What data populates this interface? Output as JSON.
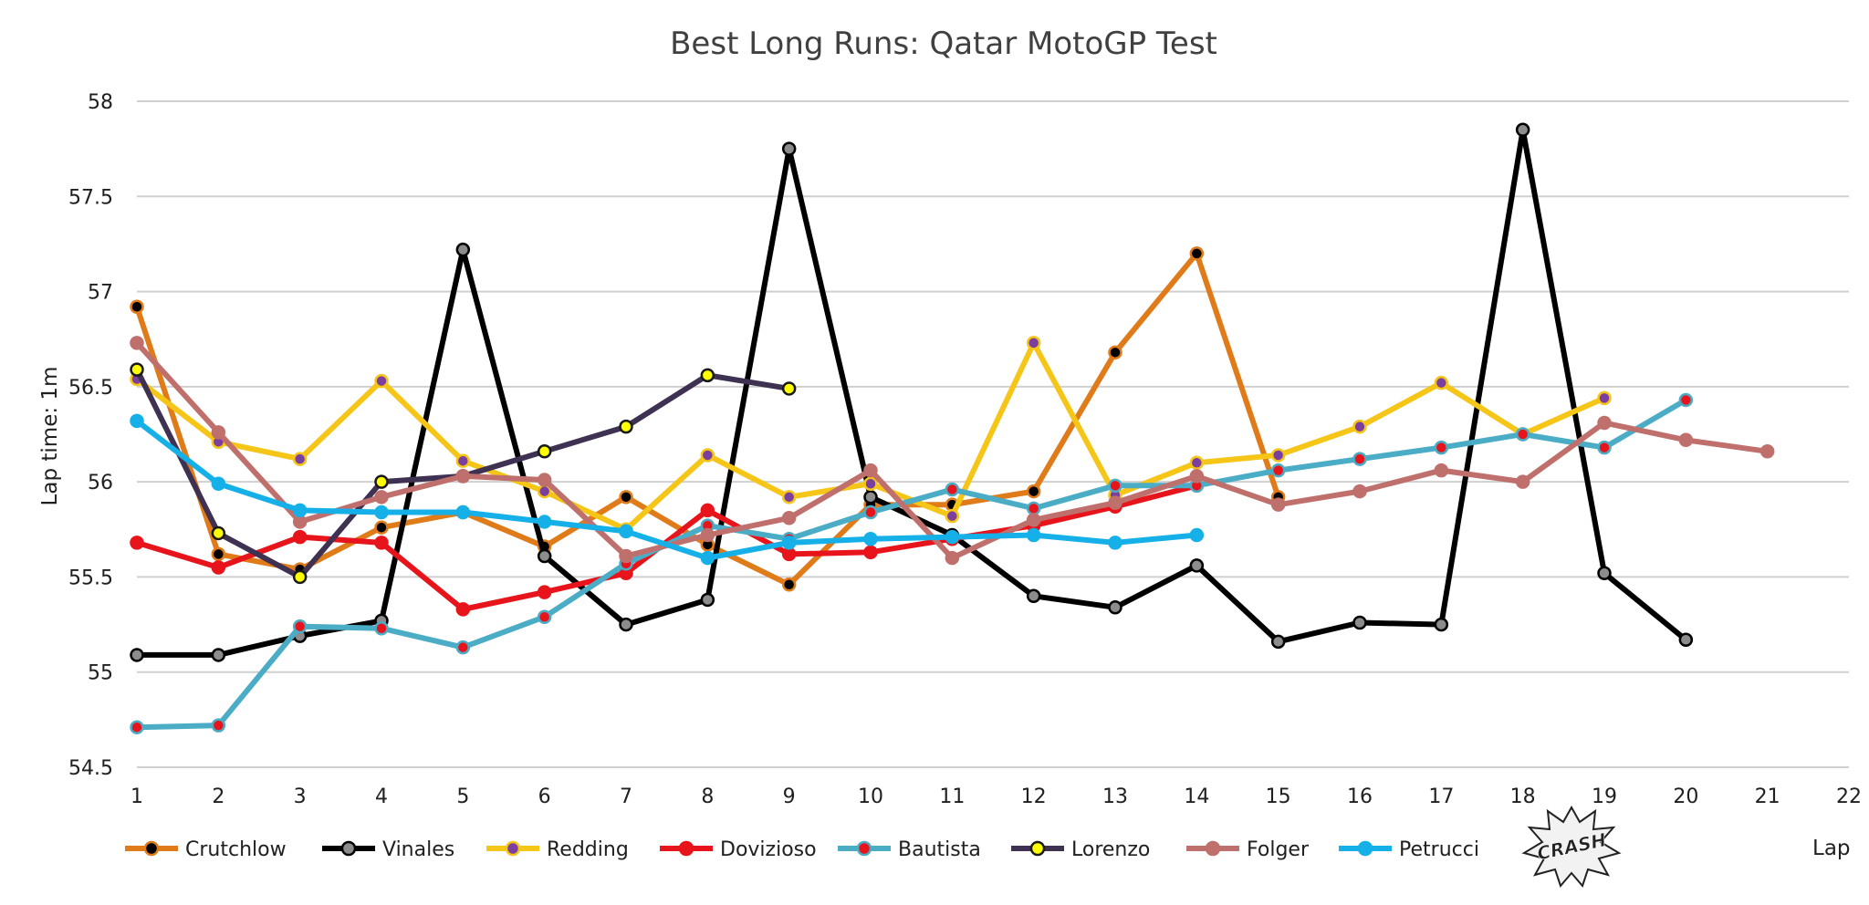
{
  "chart_data": {
    "type": "line",
    "title": "Best Long Runs: Qatar MotoGP Test",
    "xlabel": "Lap",
    "ylabel": "Lap time: 1m",
    "xlim": [
      1,
      22
    ],
    "ylim": [
      54.5,
      58
    ],
    "x_ticks": [
      "1",
      "2",
      "3",
      "4",
      "5",
      "6",
      "7",
      "8",
      "9",
      "10",
      "11",
      "12",
      "13",
      "14",
      "15",
      "16",
      "17",
      "18",
      "19",
      "20",
      "21",
      "22"
    ],
    "y_ticks": [
      "54.5",
      "55",
      "55.5",
      "56",
      "56.5",
      "57",
      "57.5",
      "58"
    ],
    "grid": true,
    "legend_position": "bottom",
    "logo_text": "CRASH",
    "series": [
      {
        "name": "Crutchlow",
        "color": "#E07B1A",
        "marker_fill": "#000000",
        "marker_edge": "#E07B1A",
        "x": [
          1,
          2,
          3,
          4,
          5,
          6,
          7,
          8,
          9,
          10,
          11,
          12,
          13,
          14,
          15
        ],
        "values": [
          56.92,
          55.62,
          55.54,
          55.76,
          55.84,
          55.66,
          55.92,
          55.67,
          55.46,
          55.88,
          55.88,
          55.95,
          56.68,
          57.2,
          55.92
        ]
      },
      {
        "name": "Vinales",
        "color": "#000000",
        "marker_fill": "#8C8C8C",
        "marker_edge": "#000000",
        "x": [
          1,
          2,
          3,
          4,
          5,
          6,
          7,
          8,
          9,
          10,
          11,
          12,
          13,
          14,
          15,
          16,
          17,
          18,
          19,
          20
        ],
        "values": [
          55.09,
          55.09,
          55.19,
          55.27,
          57.22,
          55.61,
          55.25,
          55.38,
          57.75,
          55.92,
          55.72,
          55.4,
          55.34,
          55.56,
          55.16,
          55.26,
          55.25,
          57.85,
          55.52,
          55.17
        ]
      },
      {
        "name": "Redding",
        "color": "#F5C518",
        "marker_fill": "#7B3FA0",
        "marker_edge": "#F5C518",
        "x": [
          1,
          2,
          3,
          4,
          5,
          6,
          7,
          8,
          9,
          10,
          11,
          12,
          13,
          14,
          15,
          16,
          17,
          18,
          19
        ],
        "values": [
          56.54,
          56.21,
          56.12,
          56.53,
          56.11,
          55.95,
          55.75,
          56.14,
          55.92,
          55.99,
          55.82,
          56.73,
          55.93,
          56.1,
          56.14,
          56.29,
          56.52,
          56.25,
          56.44
        ]
      },
      {
        "name": "Dovizioso",
        "color": "#E8141B",
        "marker_fill": "#E8141B",
        "marker_edge": "#E8141B",
        "x": [
          1,
          2,
          3,
          4,
          5,
          6,
          7,
          8,
          9,
          10,
          11,
          12,
          13,
          14
        ],
        "values": [
          55.68,
          55.55,
          55.71,
          55.68,
          55.33,
          55.42,
          55.52,
          55.85,
          55.62,
          55.63,
          55.7,
          55.77,
          55.87,
          55.98
        ]
      },
      {
        "name": "Bautista",
        "color": "#4BACC6",
        "marker_fill": "#E8141B",
        "marker_edge": "#4BACC6",
        "x": [
          1,
          2,
          3,
          4,
          5,
          6,
          7,
          8,
          9,
          10,
          11,
          12,
          13,
          14,
          15,
          16,
          17,
          18,
          19,
          20
        ],
        "values": [
          54.71,
          54.72,
          55.24,
          55.23,
          55.13,
          55.29,
          55.57,
          55.77,
          55.7,
          55.84,
          55.96,
          55.86,
          55.98,
          55.98,
          56.06,
          56.12,
          56.18,
          56.25,
          56.18,
          56.43
        ]
      },
      {
        "name": "Lorenzo",
        "color": "#3F3151",
        "marker_fill": "#FFFF00",
        "marker_edge": "#1A1A1A",
        "x": [
          1,
          2,
          3,
          4,
          5,
          6,
          7,
          8,
          9
        ],
        "values": [
          56.59,
          55.73,
          55.5,
          56.0,
          56.03,
          56.16,
          56.29,
          56.56,
          56.49
        ]
      },
      {
        "name": "Folger",
        "color": "#C0706C",
        "marker_fill": "#C0706C",
        "marker_edge": "#C0706C",
        "x": [
          1,
          2,
          3,
          4,
          5,
          6,
          7,
          8,
          9,
          10,
          11,
          12,
          13,
          14,
          15,
          16,
          17,
          18,
          19,
          20,
          21
        ],
        "values": [
          56.73,
          56.26,
          55.79,
          55.92,
          56.03,
          56.01,
          55.61,
          55.72,
          55.81,
          56.06,
          55.6,
          55.8,
          55.89,
          56.03,
          55.88,
          55.95,
          56.06,
          56.0,
          56.31,
          56.22,
          56.16
        ]
      },
      {
        "name": "Petrucci",
        "color": "#16B0E8",
        "marker_fill": "#16B0E8",
        "marker_edge": "#16B0E8",
        "x": [
          1,
          2,
          3,
          4,
          5,
          6,
          7,
          8,
          9,
          10,
          11,
          12,
          13,
          14
        ],
        "values": [
          56.32,
          55.99,
          55.85,
          55.84,
          55.84,
          55.79,
          55.74,
          55.6,
          55.68,
          55.7,
          55.71,
          55.72,
          55.68,
          55.72
        ]
      }
    ]
  }
}
